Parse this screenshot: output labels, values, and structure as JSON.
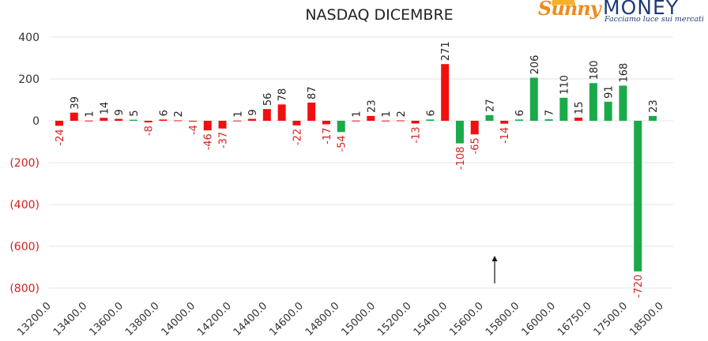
{
  "title": "NASDAQ DICEMBRE",
  "logo": {
    "name_part1": "Sunny",
    "name_part2": "MONEY",
    "tagline": "Facciamo luce sui mercati"
  },
  "colors": {
    "positive": "#1aaa4a",
    "negative": "#f01010",
    "tick_negative": "#d62020",
    "tick_positive": "#333333"
  },
  "chart_data": {
    "type": "bar",
    "title": "NASDAQ DICEMBRE",
    "xlabel": "",
    "ylabel": "",
    "ylim": [
      -800,
      400
    ],
    "yticks": [
      400,
      200,
      0,
      -200,
      -400,
      -600,
      -800
    ],
    "ytick_labels": [
      "400",
      "200",
      "0",
      "(200)",
      "(400)",
      "(600)",
      "(800)"
    ],
    "categories": [
      "13200.0",
      "13400.0",
      "13600.0",
      "13800.0",
      "14000.0",
      "14200.0",
      "14400.0",
      "14600.0",
      "14800.0",
      "15000.0",
      "15200.0",
      "15400.0",
      "15600.0",
      "15800.0",
      "16000.0",
      "16750.0",
      "17500.0",
      "18500.0"
    ],
    "grid": "horizontal",
    "bars": [
      {
        "value": -24,
        "color": "red"
      },
      {
        "value": 39,
        "color": "red"
      },
      {
        "value": 1,
        "color": "red"
      },
      {
        "value": 14,
        "color": "red"
      },
      {
        "value": 9,
        "color": "red"
      },
      {
        "value": 5,
        "color": "green"
      },
      {
        "value": -8,
        "color": "red"
      },
      {
        "value": 6,
        "color": "red"
      },
      {
        "value": 2,
        "color": "red"
      },
      {
        "value": -4,
        "color": "red"
      },
      {
        "value": -46,
        "color": "red"
      },
      {
        "value": -37,
        "color": "red"
      },
      {
        "value": 1,
        "color": "red"
      },
      {
        "value": 9,
        "color": "red"
      },
      {
        "value": 56,
        "color": "red"
      },
      {
        "value": 78,
        "color": "red"
      },
      {
        "value": -22,
        "color": "red"
      },
      {
        "value": 87,
        "color": "red"
      },
      {
        "value": -17,
        "color": "red"
      },
      {
        "value": -54,
        "color": "green"
      },
      {
        "value": 1,
        "color": "red"
      },
      {
        "value": 23,
        "color": "red"
      },
      {
        "value": 1,
        "color": "red"
      },
      {
        "value": 2,
        "color": "red"
      },
      {
        "value": -13,
        "color": "red"
      },
      {
        "value": 6,
        "color": "green"
      },
      {
        "value": 271,
        "color": "red"
      },
      {
        "value": -108,
        "color": "green"
      },
      {
        "value": -65,
        "color": "red"
      },
      {
        "value": 27,
        "color": "green"
      },
      {
        "value": -14,
        "color": "red"
      },
      {
        "value": 6,
        "color": "green"
      },
      {
        "value": 206,
        "color": "green"
      },
      {
        "value": 7,
        "color": "green"
      },
      {
        "value": 110,
        "color": "green"
      },
      {
        "value": 15,
        "color": "red"
      },
      {
        "value": 180,
        "color": "green"
      },
      {
        "value": 91,
        "color": "green"
      },
      {
        "value": 168,
        "color": "green"
      },
      {
        "value": -720,
        "color": "green"
      },
      {
        "value": 23,
        "color": "green"
      }
    ],
    "annotations": [
      {
        "type": "arrow",
        "direction": "up",
        "near_category": "15600.0"
      }
    ]
  }
}
